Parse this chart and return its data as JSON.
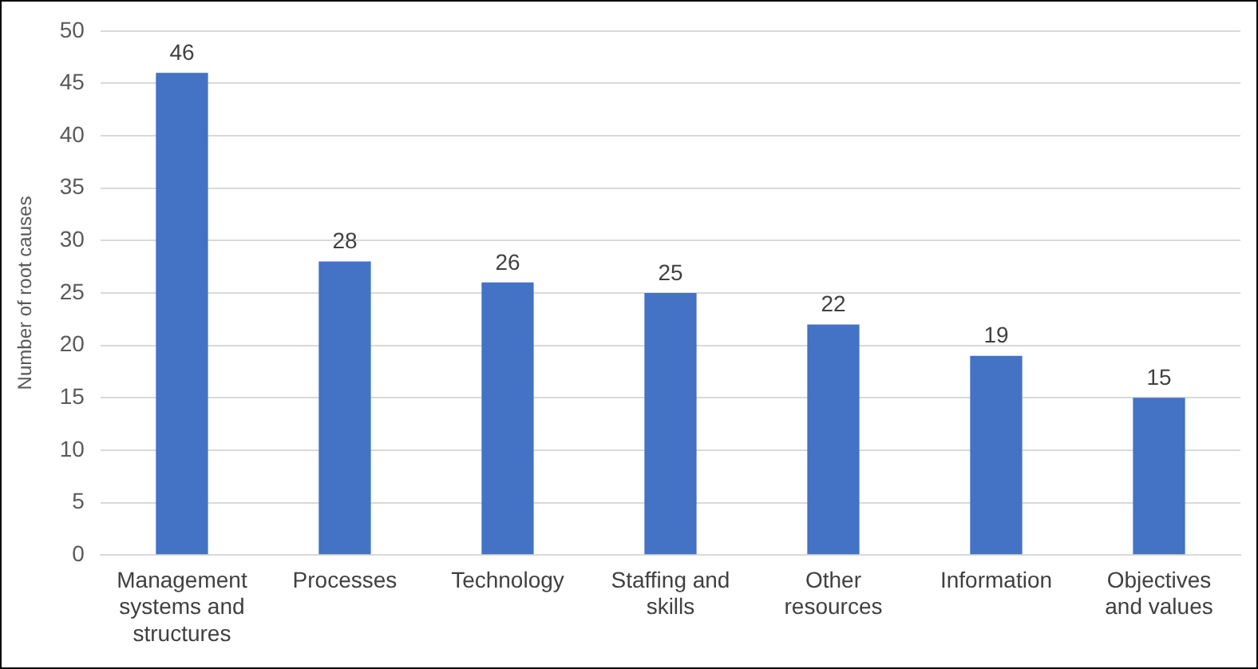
{
  "chart_data": {
    "type": "bar",
    "ylabel": "Number of root causes",
    "categories": [
      "Management systems and structures",
      "Processes",
      "Technology",
      "Staffing and skills",
      "Other resources",
      "Information",
      "Objectives and values"
    ],
    "values": [
      46,
      28,
      26,
      25,
      22,
      19,
      15
    ],
    "color": "#4472c4",
    "ylim": [
      0,
      50
    ],
    "yticks": [
      0,
      5,
      10,
      15,
      20,
      25,
      30,
      35,
      40,
      45,
      50
    ],
    "grid": "y",
    "data_labels": true,
    "legend": false
  }
}
